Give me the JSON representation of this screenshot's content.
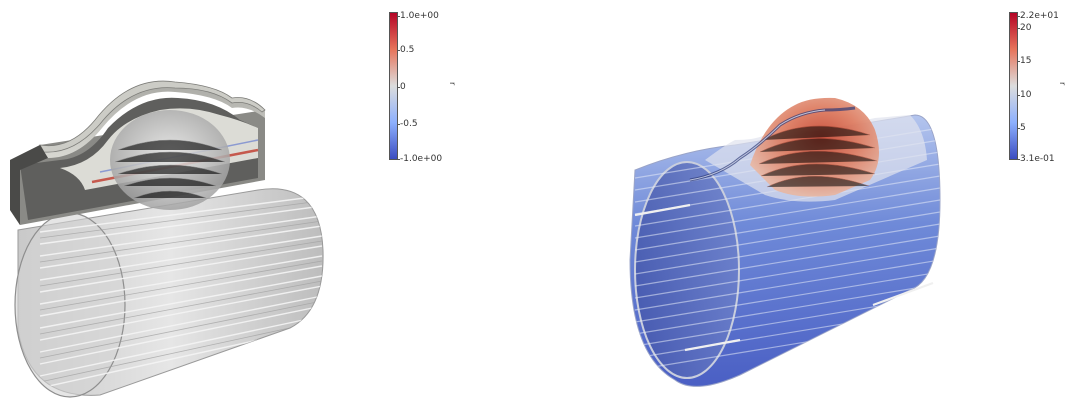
{
  "left_view": {
    "colorbar": {
      "title": "r",
      "ticks": [
        "1.0e+00",
        "0.5",
        "0",
        "-0.5",
        "-1.0e+00"
      ],
      "colors": [
        "#b40426",
        "#dcdddd",
        "#3b4cc0"
      ]
    }
  },
  "right_view": {
    "colorbar": {
      "title": "r",
      "ticks": [
        "2.2e+01",
        "20",
        "15",
        "10",
        "5",
        "3.1e-01"
      ],
      "colors": [
        "#b40426",
        "#dcdddd",
        "#3b4cc0"
      ]
    }
  }
}
